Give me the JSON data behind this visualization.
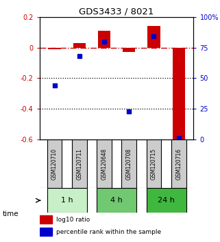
{
  "title": "GDS3433 / 8021",
  "samples": [
    "GSM120710",
    "GSM120711",
    "GSM120648",
    "GSM120708",
    "GSM120715",
    "GSM120716"
  ],
  "time_groups": [
    {
      "label": "1 h",
      "indices": [
        0,
        1
      ],
      "color": "#c8f0c8"
    },
    {
      "label": "4 h",
      "indices": [
        2,
        3
      ],
      "color": "#90d890"
    },
    {
      "label": "24 h",
      "indices": [
        4,
        5
      ],
      "color": "#50c050"
    }
  ],
  "log10_ratio": [
    -0.01,
    0.03,
    0.11,
    -0.03,
    0.14,
    -0.6
  ],
  "percentile_rank": [
    44,
    68,
    80,
    23,
    84,
    1
  ],
  "ylim_left": [
    -0.6,
    0.2
  ],
  "ylim_right": [
    0,
    100
  ],
  "bar_width": 0.5,
  "red_color": "#cc0000",
  "blue_color": "#0000cc",
  "dotted_line_color": "#000000",
  "bg_color": "#ffffff",
  "label_bg": "#cccccc",
  "time_colors": [
    "#c8f0c8",
    "#70c870",
    "#40b840"
  ]
}
